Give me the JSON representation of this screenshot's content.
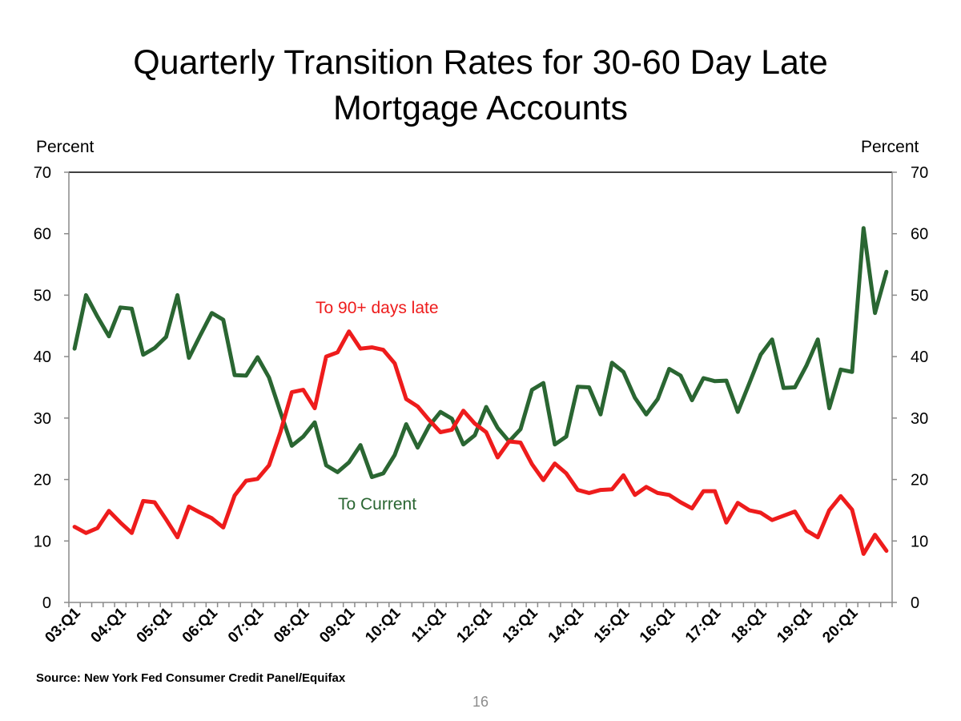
{
  "title_line1": "Quarterly Transition Rates for 30-60 Day Late",
  "title_line2": "Mortgage Accounts",
  "source": "Source: New York Fed Consumer Credit Panel/Equifax",
  "page_number": "16",
  "chart_data": {
    "type": "line",
    "title": "Quarterly Transition Rates for 30-60 Day Late Mortgage Accounts",
    "ylabel_left": "Percent",
    "ylabel_right": "Percent",
    "ylim": [
      0,
      70
    ],
    "yticks": [
      0,
      10,
      20,
      30,
      40,
      50,
      60,
      70
    ],
    "x_tick_labels": [
      "03:Q1",
      "04:Q1",
      "05:Q1",
      "06:Q1",
      "07:Q1",
      "08:Q1",
      "09:Q1",
      "10:Q1",
      "11:Q1",
      "12:Q1",
      "13:Q1",
      "14:Q1",
      "15:Q1",
      "16:Q1",
      "17:Q1",
      "18:Q1",
      "19:Q1",
      "20:Q1"
    ],
    "quarters_start": "03:Q1",
    "num_quarters": 72,
    "series": [
      {
        "name": "To Current",
        "label": "To Current",
        "color": "#2a6632",
        "values": [
          41.3,
          50.0,
          46.5,
          43.3,
          48.0,
          47.8,
          40.3,
          41.4,
          43.2,
          50.0,
          39.8,
          43.5,
          47.1,
          46.0,
          37.0,
          36.9,
          39.9,
          36.6,
          31.0,
          25.5,
          27.0,
          29.3,
          22.3,
          21.2,
          22.8,
          25.6,
          20.4,
          21.0,
          24.0,
          29.0,
          25.2,
          28.7,
          31.0,
          29.9,
          25.7,
          27.2,
          31.8,
          28.4,
          26.2,
          28.2,
          34.6,
          35.7,
          25.7,
          27.0,
          35.1,
          35.0,
          30.6,
          39.0,
          37.5,
          33.3,
          30.6,
          33.1,
          38.0,
          36.9,
          32.9,
          36.5,
          36.0,
          36.1,
          31.0,
          35.6,
          40.3,
          42.8,
          34.9,
          35.0,
          38.5,
          42.8,
          31.6,
          37.9,
          37.5,
          60.9,
          47.1,
          53.8
        ]
      },
      {
        "name": "To 90+ days late",
        "label": "To 90+ days late",
        "color": "#ee1c1c",
        "values": [
          12.3,
          11.3,
          12.1,
          14.9,
          13.0,
          11.3,
          16.5,
          16.3,
          13.5,
          10.6,
          15.6,
          14.6,
          13.7,
          12.2,
          17.4,
          19.8,
          20.1,
          22.3,
          27.7,
          34.2,
          34.6,
          31.6,
          40.0,
          40.7,
          44.1,
          41.3,
          41.5,
          41.1,
          38.9,
          33.1,
          31.9,
          29.7,
          27.7,
          28.1,
          31.2,
          29.1,
          27.7,
          23.6,
          26.2,
          26.0,
          22.5,
          19.9,
          22.6,
          21.0,
          18.3,
          17.8,
          18.3,
          18.4,
          20.7,
          17.5,
          18.8,
          17.8,
          17.5,
          16.3,
          15.3,
          18.1,
          18.1,
          13.0,
          16.2,
          15.0,
          14.6,
          13.4,
          14.1,
          14.8,
          11.7,
          10.6,
          15.0,
          17.3,
          15.1,
          7.9,
          11.0,
          8.4
        ]
      }
    ],
    "legend": "inline labels"
  }
}
